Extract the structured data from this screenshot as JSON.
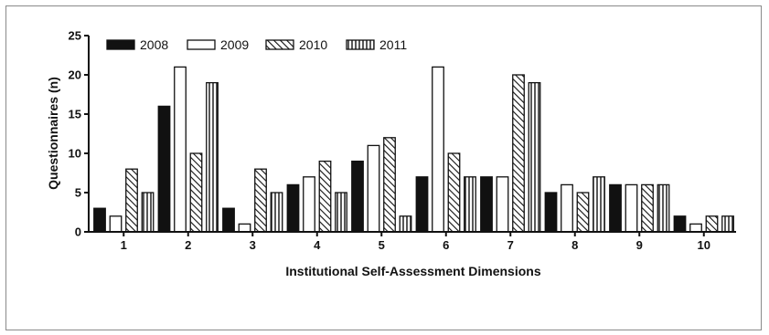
{
  "chart_data": {
    "type": "bar",
    "title": "",
    "xlabel": "Institutional Self-Assessment Dimensions",
    "ylabel": "Questionnaires (n)",
    "categories": [
      "1",
      "2",
      "3",
      "4",
      "5",
      "6",
      "7",
      "8",
      "9",
      "10"
    ],
    "ylim": [
      0,
      25
    ],
    "yticks": [
      "0",
      "5",
      "10",
      "15",
      "20",
      "25"
    ],
    "grid": false,
    "legend": "top-left",
    "series": [
      {
        "name": "2008",
        "fill": "solid",
        "values": [
          3,
          16,
          3,
          6,
          9,
          7,
          7,
          5,
          6,
          2
        ]
      },
      {
        "name": "2009",
        "fill": "open",
        "values": [
          2,
          21,
          1,
          7,
          11,
          21,
          7,
          6,
          6,
          1
        ]
      },
      {
        "name": "2010",
        "fill": "diagonal-hatch",
        "values": [
          8,
          10,
          8,
          9,
          12,
          10,
          20,
          5,
          6,
          2
        ]
      },
      {
        "name": "2011",
        "fill": "vertical-stripe",
        "values": [
          5,
          19,
          5,
          5,
          2,
          7,
          19,
          7,
          6,
          2
        ]
      }
    ],
    "colors": {
      "bar": "#111111",
      "background": "#ffffff",
      "border": "#8a8a8a"
    }
  }
}
